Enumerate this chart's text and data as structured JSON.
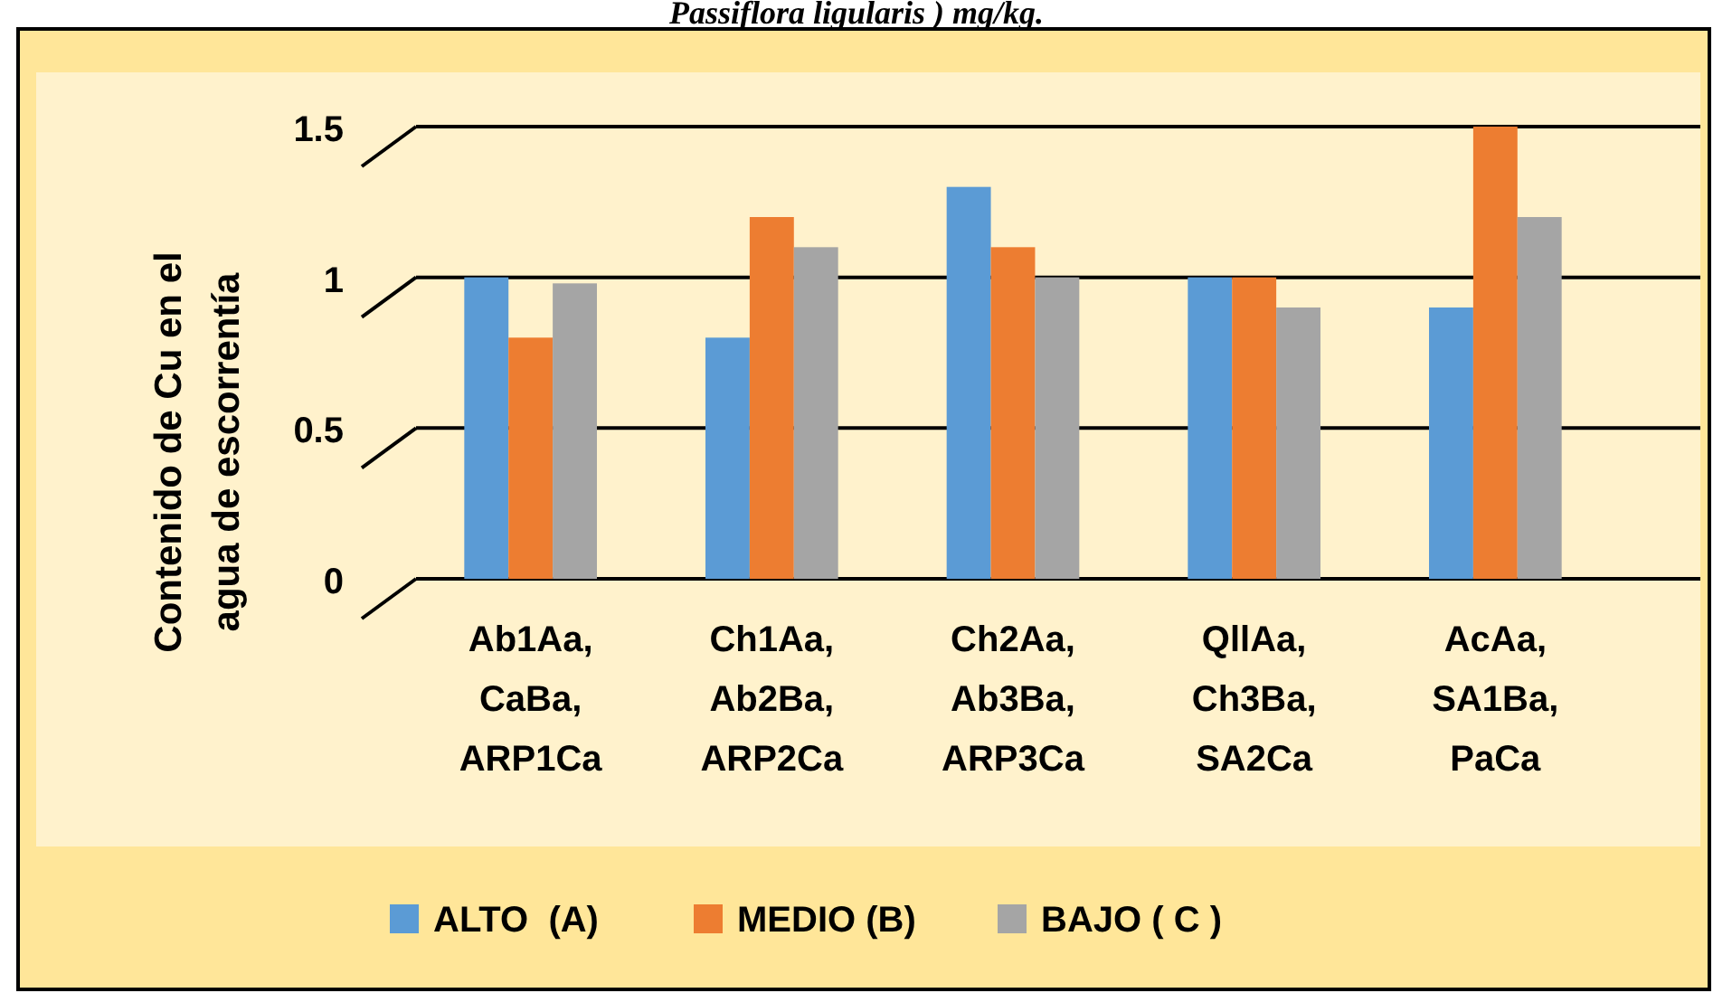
{
  "chart_data": {
    "type": "bar",
    "title": "Passiflora ligularis ) mg/kg.",
    "ylabel": "Contenido de Cu en el agua de escorrentía",
    "categories": [
      "Ab1Aa, CaBa, ARP1Ca",
      "Ch1Aa, Ab2Ba, ARP2Ca",
      "Ch2Aa, Ab3Ba, ARP3Ca",
      "QllAa, Ch3Ba, SA2Ca",
      "AcAa, SA1Ba, PaCa"
    ],
    "series": [
      {
        "name": "ALTO  (A)",
        "color": "#5b9bd5",
        "values": [
          1.0,
          0.8,
          1.3,
          1.0,
          0.9
        ]
      },
      {
        "name": "MEDIO (B)",
        "color": "#ed7d31",
        "values": [
          0.8,
          1.2,
          1.1,
          1.0,
          1.5
        ]
      },
      {
        "name": "BAJO ( C )",
        "color": "#a5a5a5",
        "values": [
          0.98,
          1.1,
          1.0,
          0.9,
          1.2
        ]
      }
    ],
    "ylim": [
      0,
      1.5
    ],
    "yticks": [
      0,
      0.5,
      1,
      1.5
    ],
    "grid": "y",
    "legend": "bottom"
  }
}
